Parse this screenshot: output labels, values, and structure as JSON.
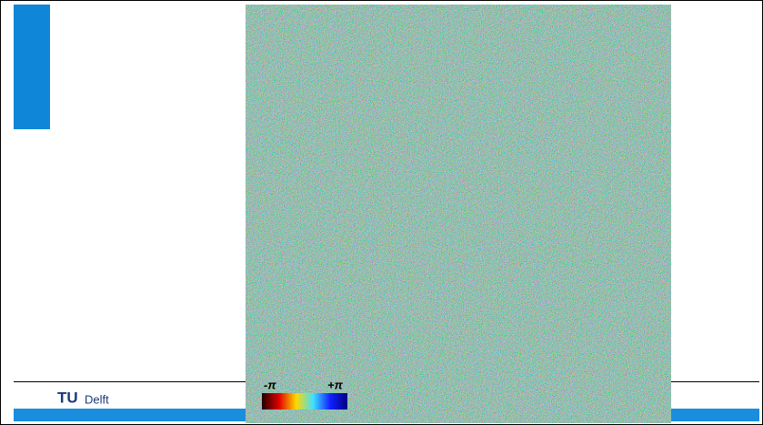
{
  "colorbar": {
    "min_label": "-π",
    "max_label": "+π"
  },
  "footer": {
    "logo_tu": "TU",
    "logo_delft": "Delft"
  }
}
